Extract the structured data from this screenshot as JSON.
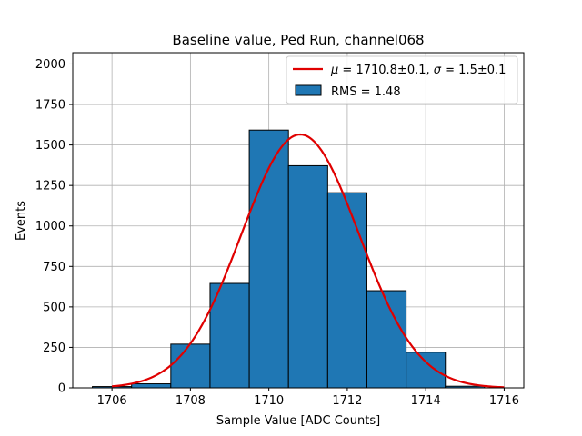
{
  "chart_data": {
    "type": "bar",
    "title": "Baseline value, Ped Run, channel068",
    "xlabel": "Sample Value [ADC Counts]",
    "ylabel": "Events",
    "xlim": [
      1705,
      1716.5
    ],
    "ylim": [
      0,
      2070
    ],
    "xticks": [
      "1706",
      "1708",
      "1710",
      "1712",
      "1714",
      "1716"
    ],
    "yticks": [
      "0",
      "250",
      "500",
      "750",
      "1000",
      "1250",
      "1500",
      "1750",
      "2000"
    ],
    "grid": true,
    "legend_position": "top-right",
    "histogram": {
      "name": "RMS = 1.48",
      "color": "#1f77b4",
      "edge_color": "#000000",
      "bins": [
        {
          "x0": 1705.5,
          "x1": 1706.5,
          "value": 8
        },
        {
          "x0": 1706.5,
          "x1": 1707.5,
          "value": 25
        },
        {
          "x0": 1707.5,
          "x1": 1708.5,
          "value": 270
        },
        {
          "x0": 1708.5,
          "x1": 1709.5,
          "value": 645
        },
        {
          "x0": 1709.5,
          "x1": 1710.5,
          "value": 1592
        },
        {
          "x0": 1710.5,
          "x1": 1711.5,
          "value": 1372
        },
        {
          "x0": 1711.5,
          "x1": 1712.5,
          "value": 1205
        },
        {
          "x0": 1712.5,
          "x1": 1713.5,
          "value": 600
        },
        {
          "x0": 1713.5,
          "x1": 1714.5,
          "value": 220
        },
        {
          "x0": 1714.5,
          "x1": 1715.5,
          "value": 10
        }
      ]
    },
    "fit": {
      "name": "μ = 1710.8±0.1, σ = 1.5±0.1",
      "legend_parts": [
        "μ",
        " = 1710.8±0.1, ",
        "σ",
        " = 1.5±0.1"
      ],
      "color": "#e00000",
      "type": "gaussian",
      "mu": 1710.8,
      "sigma": 1.5,
      "amplitude": 1565,
      "x_range": [
        1706,
        1716
      ]
    }
  }
}
